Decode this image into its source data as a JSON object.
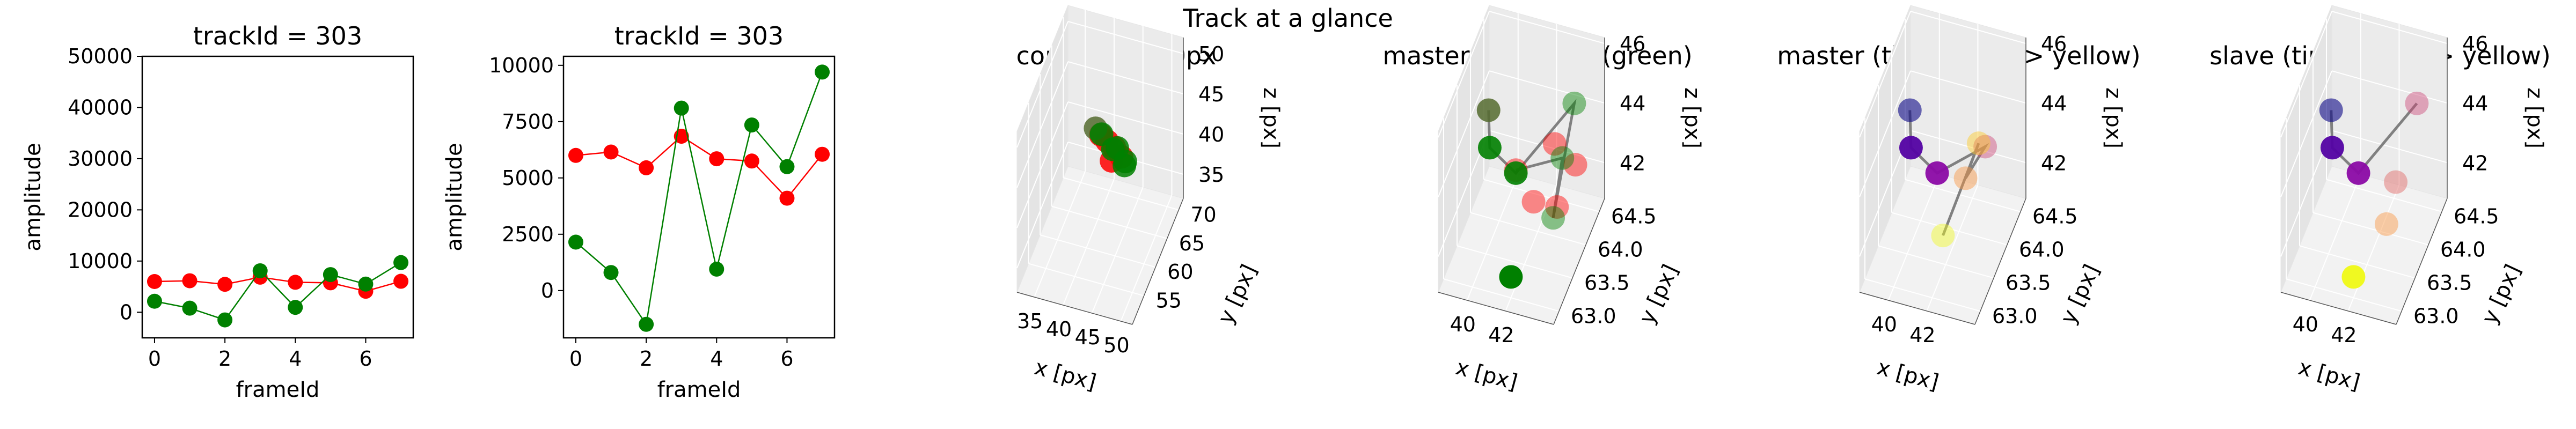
{
  "figure_title": "Track at a glance",
  "chart_data": [
    {
      "id": "amp-wide",
      "type": "line",
      "title": "trackId = 303",
      "xlabel": "frameId",
      "ylabel": "amplitude",
      "xlim": [
        -0.35,
        7.35
      ],
      "ylim": [
        -5000,
        50000
      ],
      "xticks": [
        0,
        2,
        4,
        6
      ],
      "yticks": [
        0,
        10000,
        20000,
        30000,
        40000,
        50000
      ],
      "series": [
        {
          "color": "#ff0000",
          "x": [
            0,
            1,
            2,
            3,
            4,
            5,
            6,
            7
          ],
          "values": [
            6000,
            6150,
            5450,
            6850,
            5850,
            5750,
            4100,
            6050
          ]
        },
        {
          "color": "#008000",
          "x": [
            0,
            1,
            2,
            3,
            4,
            5,
            6,
            7
          ],
          "values": [
            2150,
            800,
            -1500,
            8100,
            950,
            7350,
            5500,
            9700
          ]
        }
      ]
    },
    {
      "id": "amp-zoom",
      "type": "line",
      "title": "trackId = 303",
      "xlabel": "frameId",
      "ylabel": "amplitude",
      "xlim": [
        -0.35,
        7.35
      ],
      "ylim": [
        -2100,
        10400
      ],
      "xticks": [
        0,
        2,
        4,
        6
      ],
      "yticks": [
        0,
        2500,
        5000,
        7500,
        10000
      ],
      "series": [
        {
          "color": "#ff0000",
          "x": [
            0,
            1,
            2,
            3,
            4,
            5,
            6,
            7
          ],
          "values": [
            6000,
            6150,
            5450,
            6850,
            5850,
            5750,
            4100,
            6050
          ]
        },
        {
          "color": "#008000",
          "x": [
            0,
            1,
            2,
            3,
            4,
            5,
            6,
            7
          ],
          "values": [
            2150,
            800,
            -1500,
            8100,
            950,
            7350,
            5500,
            9700
          ]
        }
      ]
    },
    {
      "id": "context",
      "type": "scatter",
      "title": "context +- 10px",
      "xlabel": "x [px]",
      "ylabel": "y [px]",
      "zlabel": "z [px]",
      "xlim": [
        32,
        52
      ],
      "ylim": [
        50,
        72
      ],
      "zlim": [
        32,
        52
      ],
      "xticks": [
        35,
        40,
        45,
        50
      ],
      "yticks": [
        55,
        60,
        65,
        70
      ],
      "zticks": [
        35,
        40,
        45,
        50
      ],
      "points": [
        {
          "x": 41.6,
          "y": 62.2,
          "z": 44.8,
          "color": "#ff0000"
        },
        {
          "x": 42.4,
          "y": 63.0,
          "z": 43.6,
          "color": "#ff0000"
        },
        {
          "x": 43.4,
          "y": 63.6,
          "z": 42.6,
          "color": "#ff0000"
        },
        {
          "x": 44.4,
          "y": 64.2,
          "z": 41.2,
          "color": "#ff0000"
        },
        {
          "x": 42.6,
          "y": 64.4,
          "z": 40.2,
          "color": "#ff0000"
        },
        {
          "x": 40.8,
          "y": 62.0,
          "z": 45.6,
          "color": "#556b2f"
        },
        {
          "x": 41.6,
          "y": 62.6,
          "z": 44.6,
          "color": "#008000"
        },
        {
          "x": 44.0,
          "y": 63.4,
          "z": 42.8,
          "color": "#008000"
        },
        {
          "x": 43.0,
          "y": 64.0,
          "z": 42.0,
          "color": "#008000"
        },
        {
          "x": 45.0,
          "y": 64.4,
          "z": 40.6,
          "color": "#008000"
        },
        {
          "x": 44.6,
          "y": 65.0,
          "z": 39.6,
          "color": "#008000"
        }
      ]
    },
    {
      "id": "master-slave",
      "type": "scatter",
      "title": "master(red) slave(green)",
      "xlabel": "x [px]",
      "ylabel": "y [px]",
      "zlabel": "z [px]",
      "xlim": [
        38.5,
        44.5
      ],
      "ylim": [
        62.8,
        64.7
      ],
      "zlim": [
        40.8,
        46.2
      ],
      "xticks": [
        40,
        42
      ],
      "yticks": [
        63.0,
        63.5,
        64.0,
        64.5
      ],
      "zticks": [
        42,
        44,
        46
      ],
      "points": [
        {
          "x": 41.0,
          "y": 63.9,
          "z": 42.9,
          "color": "#ff0000",
          "alpha": 0.45
        },
        {
          "x": 42.2,
          "y": 63.7,
          "z": 42.5,
          "color": "#ff0000",
          "alpha": 0.45
        },
        {
          "x": 43.0,
          "y": 64.0,
          "z": 41.8,
          "color": "#ff0000",
          "alpha": 0.45
        },
        {
          "x": 42.6,
          "y": 64.2,
          "z": 43.4,
          "color": "#ff0000",
          "alpha": 0.45
        },
        {
          "x": 43.4,
          "y": 64.4,
          "z": 42.4,
          "color": "#ff0000",
          "alpha": 0.45
        },
        {
          "x": 40.0,
          "y": 63.6,
          "z": 45.4,
          "color": "#556b2f",
          "alpha": 0.85
        },
        {
          "x": 40.2,
          "y": 63.5,
          "z": 44.4,
          "color": "#008000",
          "alpha": 0.9
        },
        {
          "x": 41.0,
          "y": 63.9,
          "z": 42.8,
          "color": "#008000",
          "alpha": 0.9
        },
        {
          "x": 43.2,
          "y": 64.5,
          "z": 44.2,
          "color": "#008000",
          "alpha": 0.45
        },
        {
          "x": 42.8,
          "y": 64.0,
          "z": 41.4,
          "color": "#008000",
          "alpha": 0.45
        },
        {
          "x": 43.0,
          "y": 64.2,
          "z": 43.0,
          "color": "#008000",
          "alpha": 0.45
        },
        {
          "x": 42.0,
          "y": 63.0,
          "z": 41.5,
          "color": "#008000",
          "alpha": 1
        }
      ],
      "path": [
        {
          "x": 40.0,
          "y": 63.6,
          "z": 45.4
        },
        {
          "x": 40.2,
          "y": 63.5,
          "z": 44.4
        },
        {
          "x": 41.0,
          "y": 63.9,
          "z": 42.8
        },
        {
          "x": 43.2,
          "y": 64.5,
          "z": 44.2
        },
        {
          "x": 42.8,
          "y": 64.0,
          "z": 41.4
        },
        {
          "x": 43.0,
          "y": 64.2,
          "z": 43.0
        },
        {
          "x": 41.0,
          "y": 63.9,
          "z": 42.9
        }
      ]
    },
    {
      "id": "master-time",
      "type": "scatter",
      "title": "master (time: blue -> yellow)",
      "xlabel": "x [px]",
      "ylabel": "y [px]",
      "zlabel": "z [px]",
      "xlim": [
        38.5,
        44.5
      ],
      "ylim": [
        62.8,
        64.7
      ],
      "zlim": [
        40.8,
        46.2
      ],
      "xticks": [
        40,
        42
      ],
      "yticks": [
        63.0,
        63.5,
        64.0,
        64.5
      ],
      "zticks": [
        42,
        44,
        46
      ],
      "points": [
        {
          "x": 40.0,
          "y": 63.6,
          "z": 45.4,
          "color": "#0d0887",
          "alpha": 0.6
        },
        {
          "x": 40.2,
          "y": 63.5,
          "z": 44.4,
          "color": "#5302a3",
          "alpha": 0.95
        },
        {
          "x": 41.0,
          "y": 63.9,
          "z": 42.8,
          "color": "#8b0aa5",
          "alpha": 0.95
        },
        {
          "x": 42.8,
          "y": 64.4,
          "z": 42.9,
          "color": "#cc4778",
          "alpha": 0.45
        },
        {
          "x": 42.2,
          "y": 64.1,
          "z": 42.4,
          "color": "#f89540",
          "alpha": 0.45
        },
        {
          "x": 42.6,
          "y": 64.3,
          "z": 43.2,
          "color": "#fdca26",
          "alpha": 0.45
        },
        {
          "x": 42.0,
          "y": 63.4,
          "z": 42.0,
          "color": "#f0f921",
          "alpha": 0.45
        }
      ],
      "path": [
        {
          "x": 40.0,
          "y": 63.6,
          "z": 45.4
        },
        {
          "x": 40.2,
          "y": 63.5,
          "z": 44.4
        },
        {
          "x": 41.0,
          "y": 63.9,
          "z": 42.8
        },
        {
          "x": 42.8,
          "y": 64.4,
          "z": 42.9
        },
        {
          "x": 42.2,
          "y": 64.1,
          "z": 42.4
        },
        {
          "x": 42.6,
          "y": 64.3,
          "z": 43.2
        },
        {
          "x": 42.0,
          "y": 63.4,
          "z": 42.0
        }
      ]
    },
    {
      "id": "slave-time",
      "type": "scatter",
      "title": "slave (time: blue -> yellow)",
      "xlabel": "x [px]",
      "ylabel": "y [px]",
      "zlabel": "z [px]",
      "xlim": [
        38.5,
        44.5
      ],
      "ylim": [
        62.8,
        64.7
      ],
      "zlim": [
        40.8,
        46.2
      ],
      "xticks": [
        40,
        42
      ],
      "yticks": [
        63.0,
        63.5,
        64.0,
        64.5
      ],
      "zticks": [
        42,
        44,
        46
      ],
      "points": [
        {
          "x": 40.0,
          "y": 63.6,
          "z": 45.4,
          "color": "#0d0887",
          "alpha": 0.6
        },
        {
          "x": 40.2,
          "y": 63.5,
          "z": 44.4,
          "color": "#5302a3",
          "alpha": 0.95
        },
        {
          "x": 41.0,
          "y": 63.9,
          "z": 42.8,
          "color": "#8b0aa5",
          "alpha": 0.95
        },
        {
          "x": 43.2,
          "y": 64.5,
          "z": 44.2,
          "color": "#cc4778",
          "alpha": 0.45
        },
        {
          "x": 42.8,
          "y": 64.0,
          "z": 42.6,
          "color": "#e16462",
          "alpha": 0.45
        },
        {
          "x": 42.6,
          "y": 63.8,
          "z": 41.6,
          "color": "#f89540",
          "alpha": 0.45
        },
        {
          "x": 42.0,
          "y": 63.0,
          "z": 41.5,
          "color": "#f0f921",
          "alpha": 1
        }
      ],
      "path": [
        {
          "x": 40.0,
          "y": 63.6,
          "z": 45.4
        },
        {
          "x": 40.2,
          "y": 63.5,
          "z": 44.4
        },
        {
          "x": 41.0,
          "y": 63.9,
          "z": 42.8
        },
        {
          "x": 43.2,
          "y": 64.5,
          "z": 44.2
        }
      ]
    }
  ]
}
